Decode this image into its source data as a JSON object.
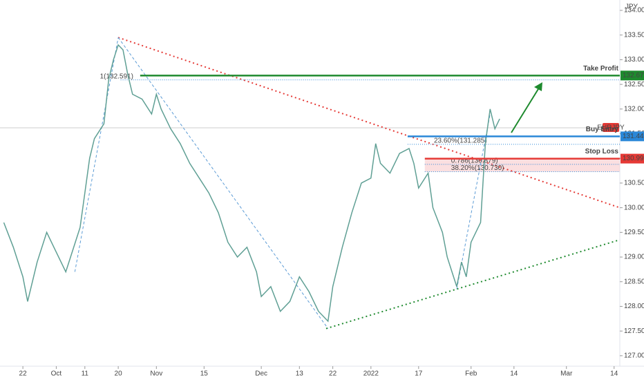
{
  "chart_data": {
    "type": "line",
    "symbol": "EURJPY",
    "currency": "JPY",
    "x": [
      -4,
      -2,
      0,
      1,
      3,
      5,
      7,
      9,
      11,
      12,
      13,
      14,
      15,
      17,
      18,
      19,
      20,
      21,
      22,
      23,
      25,
      27,
      28,
      29,
      31,
      33,
      35,
      37,
      39,
      41,
      43,
      45,
      47,
      49,
      50,
      52,
      54,
      56,
      58,
      60,
      62,
      64,
      65,
      67,
      69,
      71,
      73,
      74,
      75,
      77,
      79,
      81,
      82,
      83,
      85,
      86,
      88,
      89,
      90,
      91,
      92,
      93,
      94,
      95,
      96,
      97,
      98,
      99,
      100
    ],
    "series": [
      {
        "color": "#5f9f94",
        "values": [
          129.7,
          129.2,
          128.6,
          128.1,
          128.9,
          129.5,
          129.1,
          128.7,
          129.3,
          129.6,
          130.3,
          131.0,
          131.4,
          131.7,
          132.6,
          133.0,
          133.3,
          133.2,
          132.7,
          132.3,
          132.2,
          131.9,
          132.3,
          132.0,
          131.6,
          131.3,
          130.9,
          130.6,
          130.3,
          129.9,
          129.3,
          129.0,
          129.2,
          128.7,
          128.2,
          128.4,
          127.9,
          128.1,
          128.6,
          128.3,
          127.9,
          127.7,
          128.4,
          129.2,
          129.9,
          130.5,
          130.6,
          131.3,
          130.9,
          130.7,
          131.1,
          131.2,
          130.9,
          130.4,
          130.7,
          130.0,
          129.5,
          129.0,
          128.7,
          128.4,
          128.9,
          128.6,
          129.3,
          129.5,
          129.7,
          131.3,
          132.0,
          131.6,
          131.8
        ]
      }
    ],
    "xlim": [
      -4.8,
      125.2
    ],
    "xticks": [
      {
        "value": 0,
        "label": "22"
      },
      {
        "value": 7,
        "label": "Oct"
      },
      {
        "value": 13,
        "label": "11"
      },
      {
        "value": 20,
        "label": "20"
      },
      {
        "value": 28,
        "label": "Nov"
      },
      {
        "value": 38,
        "label": "15"
      },
      {
        "value": 50,
        "label": "Dec"
      },
      {
        "value": 58,
        "label": "13"
      },
      {
        "value": 65,
        "label": "22"
      },
      {
        "value": 73,
        "label": "2022"
      },
      {
        "value": 83,
        "label": "17"
      },
      {
        "value": 94,
        "label": "Feb"
      },
      {
        "value": 103,
        "label": "14"
      },
      {
        "value": 114,
        "label": "Mar"
      },
      {
        "value": 124,
        "label": "14"
      }
    ],
    "ylim": [
      126.9,
      134.21
    ],
    "yticks": [
      {
        "value": 127,
        "label": "127.000"
      },
      {
        "value": 127.5,
        "label": "127.500"
      },
      {
        "value": 128,
        "label": "128.000"
      },
      {
        "value": 128.5,
        "label": "128.500"
      },
      {
        "value": 129,
        "label": "129.000"
      },
      {
        "value": 129.5,
        "label": "129.500"
      },
      {
        "value": 130,
        "label": "130.000"
      },
      {
        "value": 130.5,
        "label": "130.500"
      },
      {
        "value": 131,
        "label": "131.000"
      },
      {
        "value": 131.5,
        "label": "131.500"
      },
      {
        "value": 132,
        "label": "132.000"
      },
      {
        "value": 132.5,
        "label": "132.500"
      },
      {
        "value": 133,
        "label": "133.000"
      },
      {
        "value": 133.5,
        "label": "133.500"
      },
      {
        "value": 134,
        "label": "134.000"
      }
    ],
    "last_price": 131.62,
    "levels": [
      {
        "name": "Take Profit",
        "value": 132.679,
        "from": 24.6,
        "color": "#1e8a2e"
      },
      {
        "name": "Buy Entry",
        "value": 131.446,
        "from": 80.7,
        "color": "#2a87d8"
      },
      {
        "name": "Stop Loss",
        "value": 130.995,
        "from": 84.3,
        "color": "#e53935"
      }
    ],
    "fib_lines": [
      {
        "label": "1(132.591)",
        "value": 132.591,
        "from": 20.5
      },
      {
        "label": "23.60%(131.285)",
        "value": 131.285,
        "from": 80.7
      },
      {
        "label": "0.786(130.879)",
        "value": 130.879,
        "from": 84.3
      },
      {
        "label": "38.20%(130.730)",
        "value": 130.73,
        "from": 84.3
      }
    ],
    "trendlines": [
      {
        "points": [
          [
            20,
            133.45
          ],
          [
            125.2,
            130.0
          ]
        ],
        "color": "#e53935",
        "dash": "dotted"
      },
      {
        "points": [
          [
            63.6,
            127.55
          ],
          [
            125.2,
            129.35
          ]
        ],
        "color": "#1e8a2e",
        "dash": "dotted"
      },
      {
        "points": [
          [
            10.9,
            128.7
          ],
          [
            20,
            133.45
          ]
        ],
        "color": "#5b9bd5",
        "dash": "dashed"
      },
      {
        "points": [
          [
            20,
            133.45
          ],
          [
            64,
            127.55
          ]
        ],
        "color": "#5b9bd5",
        "dash": "dashed"
      },
      {
        "points": [
          [
            91,
            128.35
          ],
          [
            98,
            131.9
          ]
        ],
        "color": "#5b9bd5",
        "dash": "dashed"
      }
    ]
  }
}
